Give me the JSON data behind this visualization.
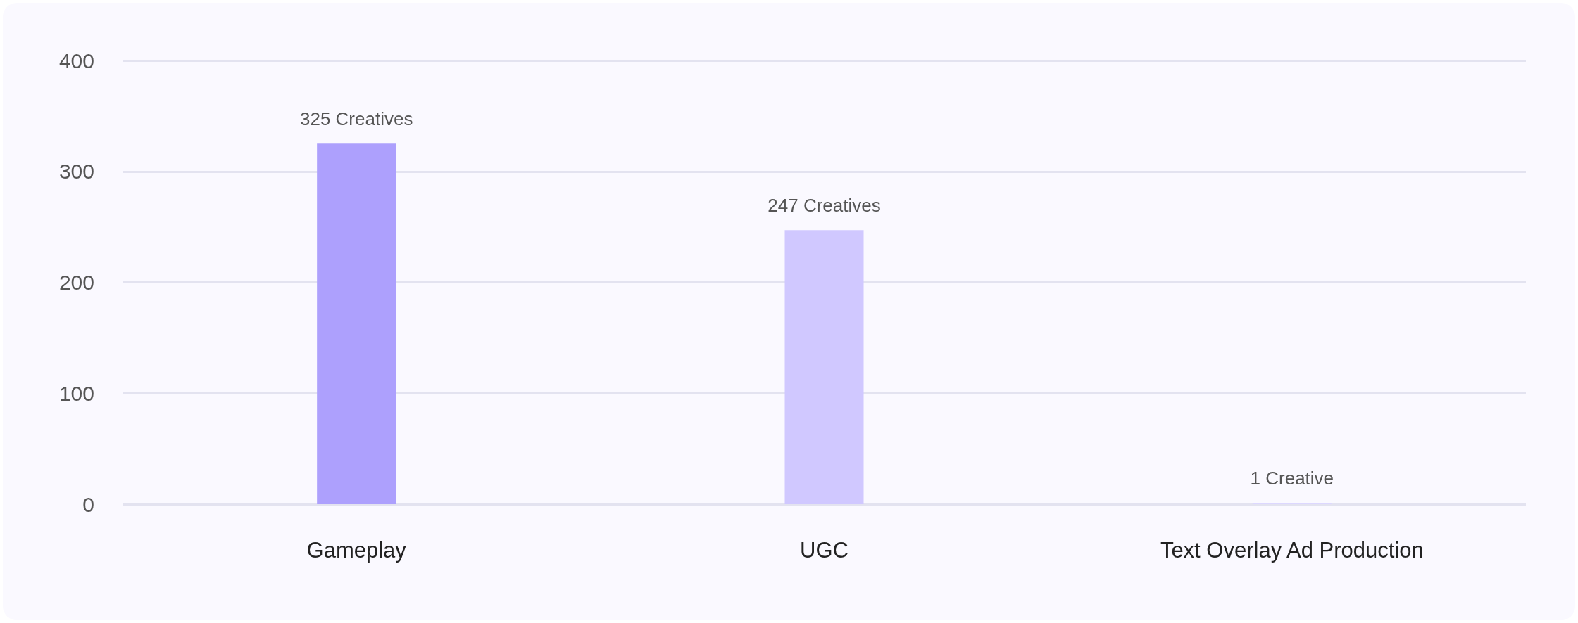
{
  "chart_data": {
    "type": "bar",
    "categories": [
      "Gameplay",
      "UGC",
      "Text Overlay Ad Production"
    ],
    "values": [
      325,
      247,
      1
    ],
    "colors": [
      "#ada0fd",
      "#d0c8ff",
      "#ddd8ff"
    ],
    "value_labels": [
      "325 Creatives",
      "247 Creatives",
      "1 Creative"
    ],
    "ylim": [
      0,
      400
    ],
    "yticks": [
      0,
      100,
      200,
      300,
      400
    ],
    "grid": "y"
  }
}
